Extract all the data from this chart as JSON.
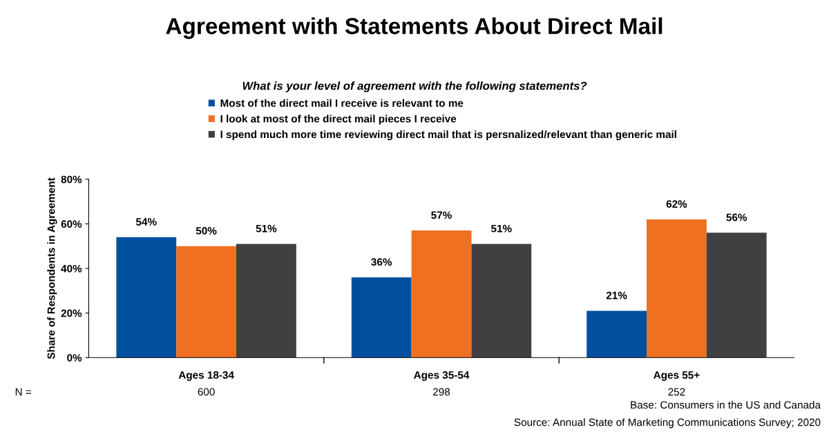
{
  "chart_data": {
    "type": "bar",
    "title": "Agreement with Statements About Direct Mail",
    "subtitle": "What is your level of agreement with the following statements?",
    "ylabel": "Share of Respondents in Agreement",
    "categories": [
      "Ages 18-34",
      "Ages 35-54",
      "Ages 55+"
    ],
    "series": [
      {
        "name": "Most of the direct mail I receive is relevant to me",
        "color": "#0050a0",
        "values": [
          54,
          36,
          21
        ],
        "value_labels": [
          "54%",
          "36%",
          "21%"
        ]
      },
      {
        "name": "I look at most of the direct mail pieces I receive",
        "color": "#f07022",
        "values": [
          50,
          57,
          62
        ],
        "value_labels": [
          "50%",
          "57%",
          "62%"
        ]
      },
      {
        "name": "I spend much more time reviewing direct mail that is persnalized/relevant than generic mail",
        "color": "#404043",
        "values": [
          51,
          51,
          56
        ],
        "value_labels": [
          "51%",
          "51%",
          "56%"
        ]
      }
    ],
    "ylim": [
      0,
      80
    ],
    "yticks": [
      {
        "value": 0,
        "label": "0%"
      },
      {
        "value": 20,
        "label": "20%"
      },
      {
        "value": 40,
        "label": "40%"
      },
      {
        "value": 60,
        "label": "60%"
      },
      {
        "value": 80,
        "label": "80%"
      }
    ],
    "grid": false,
    "legend": "top",
    "annotations": [
      "N =",
      "600",
      "298",
      "252",
      "Base: Consumers in the US and Canada",
      "Source: Annual State of Marketing Communications Survey; 2020"
    ]
  }
}
